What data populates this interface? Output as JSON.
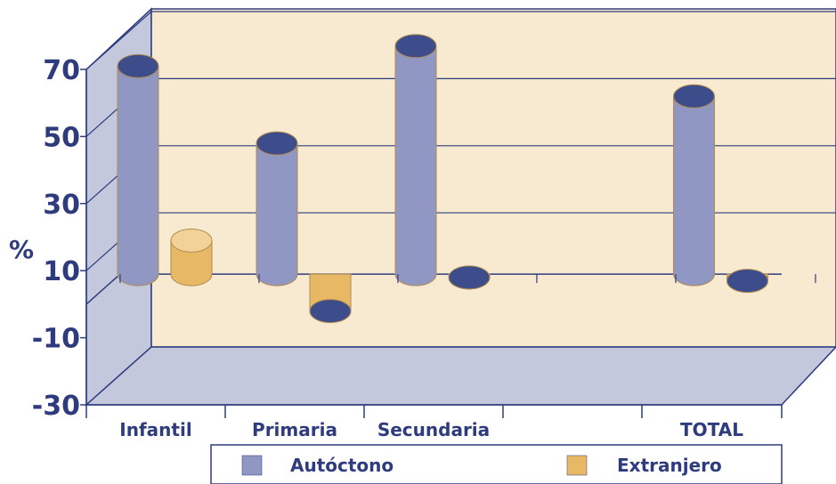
{
  "chart_data": {
    "type": "bar",
    "style": "3d-cylinder",
    "ylabel": "%",
    "ylim": [
      -30,
      70
    ],
    "yticks": [
      "70",
      "50",
      "30",
      "10",
      "-10",
      "-30"
    ],
    "categories": [
      "Infantil",
      "Primaria",
      "Secundaria",
      "",
      "TOTAL"
    ],
    "series": [
      {
        "name": "Autóctono",
        "color": "#9197c3",
        "top_color": "#3d4d8c",
        "values": [
          62,
          39,
          68,
          null,
          53
        ]
      },
      {
        "name": "Extranjero",
        "color": "#e8b964",
        "top_color": "#f2d296",
        "values": [
          10,
          -11,
          -1,
          null,
          -2
        ]
      }
    ],
    "legend_position": "bottom",
    "colors": {
      "wall": "#f8ead0",
      "side_wall": "#c4c8dc",
      "floor": "#c4c8dc",
      "axis": "#2e3c7e"
    }
  }
}
